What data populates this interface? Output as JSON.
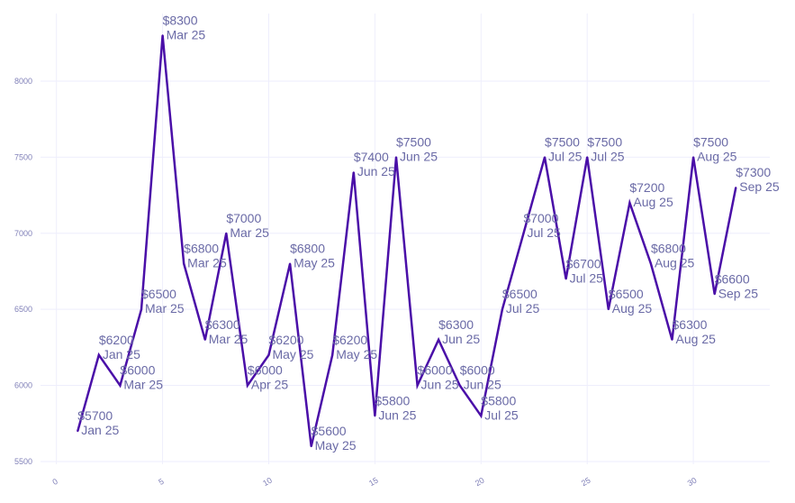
{
  "chart_data": {
    "type": "line",
    "title": "",
    "xlabel": "",
    "ylabel": "",
    "xlim": [
      -0.75,
      33.6
    ],
    "ylim": [
      5482,
      8444
    ],
    "grid": true,
    "line_color": "#4a0fa8",
    "x_ticks": [
      0,
      5,
      10,
      15,
      20,
      25,
      30
    ],
    "y_ticks": [
      5500,
      6000,
      6500,
      7000,
      7500,
      8000
    ],
    "x": [
      1,
      2,
      3,
      4,
      5,
      6,
      7,
      8,
      9,
      10,
      11,
      12,
      13,
      14,
      15,
      16,
      17,
      18,
      19,
      20,
      21,
      22,
      23,
      24,
      25,
      26,
      27,
      28,
      29,
      30,
      31,
      32
    ],
    "values": [
      5700,
      6200,
      6000,
      6500,
      8300,
      6800,
      6300,
      7000,
      6000,
      6200,
      6800,
      5600,
      6200,
      7400,
      5800,
      7500,
      6000,
      6300,
      6000,
      5800,
      6500,
      7000,
      7500,
      6700,
      7500,
      6500,
      7200,
      6800,
      6300,
      7500,
      6600,
      7300
    ],
    "value_labels": [
      "$5700",
      "$6200",
      "$6000",
      "$6500",
      "$8300",
      "$6800",
      "$6300",
      "$7000",
      "$6000",
      "$6200",
      "$6800",
      "$5600",
      "$6200",
      "$7400",
      "$5800",
      "$7500",
      "$6000",
      "$6300",
      "$6000",
      "$5800",
      "$6500",
      "$7000",
      "$7500",
      "$6700",
      "$7500",
      "$6500",
      "$7200",
      "$6800",
      "$6300",
      "$7500",
      "$6600",
      "$7300"
    ],
    "month_labels": [
      "Jan 25",
      "Jan 25",
      "Mar 25",
      "Mar 25",
      "Mar 25",
      "Mar 25",
      "Mar 25",
      "Mar 25",
      "Apr 25",
      "May 25",
      "May 25",
      "May 25",
      "May 25",
      "Jun 25",
      "Jun 25",
      "Jun 25",
      "Jun 25",
      "Jun 25",
      "Jun 25",
      "Jul 25",
      "Jul 25",
      "Jul 25",
      "Jul 25",
      "Jul 25",
      "Jul 25",
      "Aug 25",
      "Aug 25",
      "Aug 25",
      "Aug 25",
      "Aug 25",
      "Sep 25",
      "Sep 25"
    ]
  }
}
